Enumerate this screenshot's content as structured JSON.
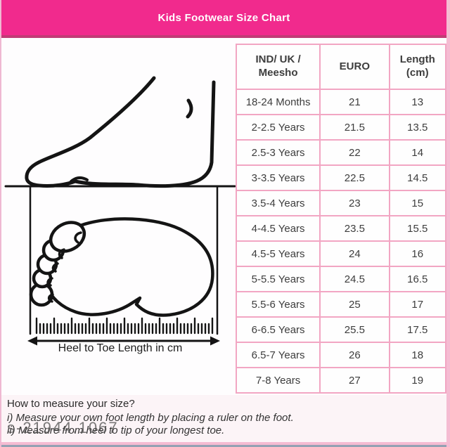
{
  "header": {
    "title": "Kids Footwear Size Chart"
  },
  "illustration": {
    "caption": "Heel to Toe Length in cm"
  },
  "size_table": {
    "columns": [
      "IND/ UK /\nMeesho",
      "EURO",
      "Length\n(cm)"
    ]
  },
  "chart_data": {
    "type": "table",
    "title": "Kids Footwear Size Chart",
    "columns": [
      "IND/ UK / Meesho",
      "EURO",
      "Length (cm)"
    ],
    "rows": [
      [
        "18-24 Months",
        "21",
        "13"
      ],
      [
        "2-2.5 Years",
        "21.5",
        "13.5"
      ],
      [
        "2.5-3 Years",
        "22",
        "14"
      ],
      [
        "3-3.5 Years",
        "22.5",
        "14.5"
      ],
      [
        "3.5-4 Years",
        "23",
        "15"
      ],
      [
        "4-4.5 Years",
        "23.5",
        "15.5"
      ],
      [
        "4.5-5 Years",
        "24",
        "16"
      ],
      [
        "5-5.5 Years",
        "24.5",
        "16.5"
      ],
      [
        "5.5-6 Years",
        "25",
        "17"
      ],
      [
        "6-6.5 Years",
        "25.5",
        "17.5"
      ],
      [
        "6.5-7 Years",
        "26",
        "18"
      ],
      [
        "7-8 Years",
        "27",
        "19"
      ]
    ]
  },
  "instructions": {
    "heading": "How to measure your size?",
    "steps": [
      "i) Measure your own foot length by placing a ruler on the foot.",
      "ii) Measure from heel to tip of your longest toe."
    ]
  },
  "watermark": "s-21944.1067",
  "colors": {
    "header_pink": "#F12A8D",
    "header_underline": "#C23B76",
    "table_border_pink": "#F2A6C3",
    "frame_pink": "#F5BBD2",
    "line_black": "#141414"
  }
}
